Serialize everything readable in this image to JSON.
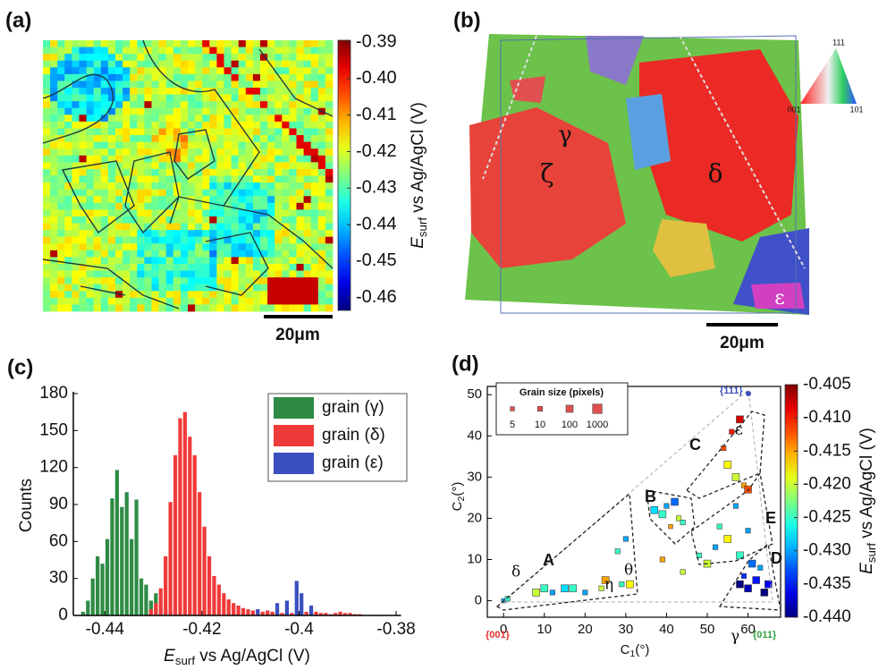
{
  "chart_data": [
    {
      "type": "heatmap",
      "panel_label": "(a)",
      "colorbar": {
        "label": {
          "main": "E",
          "sub": "surf",
          "rest": " vs Ag/AgCl (V)"
        },
        "clim": [
          -0.4635,
          -0.3895
        ],
        "cticks": [
          -0.39,
          {
            "value": -0.4,
            "label": "-0.40"
          },
          -0.41,
          -0.42,
          -0.43,
          -0.44,
          -0.45,
          -0.46
        ]
      },
      "scale_bar": "20μm"
    },
    {
      "type": "image",
      "panel_label": "(b)",
      "annotations": [
        "γ",
        "ζ",
        "δ",
        "ε"
      ],
      "key_labels": [
        "111",
        "001",
        "101"
      ],
      "scale_bar": "20μm"
    },
    {
      "type": "histogram",
      "panel_label": "(c)",
      "ylabel": "Counts",
      "xlabel": {
        "main": "E",
        "sub": "surf",
        "rest": " vs Ag/AgCl (V)"
      },
      "xlim": [
        -0.4465,
        -0.379
      ],
      "xticks": [
        -0.44,
        -0.42,
        -0.4,
        -0.38
      ],
      "ylim": [
        0,
        180
      ],
      "yticks": [
        0,
        30,
        60,
        90,
        120,
        150,
        180
      ],
      "bins": [
        -0.446,
        -0.445,
        -0.444,
        -0.443,
        -0.442,
        -0.441,
        -0.44,
        -0.439,
        -0.438,
        -0.437,
        -0.436,
        -0.435,
        -0.434,
        -0.433,
        -0.432,
        -0.431,
        -0.43,
        -0.429,
        -0.428,
        -0.427,
        -0.426,
        -0.425,
        -0.424,
        -0.423,
        -0.422,
        -0.421,
        -0.42,
        -0.419,
        -0.418,
        -0.417,
        -0.416,
        -0.415,
        -0.414,
        -0.413,
        -0.412,
        -0.411,
        -0.41,
        -0.409,
        -0.408,
        -0.407,
        -0.406,
        -0.405,
        -0.404,
        -0.403,
        -0.402,
        -0.401,
        -0.4,
        -0.399,
        -0.398,
        -0.397,
        -0.396,
        -0.395,
        -0.394,
        -0.393,
        -0.392,
        -0.391,
        -0.39,
        -0.389,
        -0.388,
        -0.387,
        -0.386
      ],
      "series": [
        {
          "name": "grain (γ)",
          "color": "#2e8b45",
          "values": [
            0,
            3,
            12,
            30,
            48,
            42,
            62,
            95,
            118,
            88,
            100,
            62,
            94,
            30,
            25,
            12,
            18,
            8,
            5,
            3,
            0,
            0,
            0,
            0,
            0,
            0,
            0,
            0,
            0,
            0,
            0,
            0,
            0,
            0,
            0,
            0,
            0,
            0,
            0,
            0,
            0,
            0,
            0,
            0,
            0,
            0,
            0,
            0,
            0,
            0,
            0,
            0,
            0,
            0,
            0,
            0,
            0,
            0,
            0,
            0
          ]
        },
        {
          "name": "grain (δ)",
          "color": "#f03a3a",
          "values": [
            0,
            0,
            0,
            0,
            0,
            0,
            0,
            0,
            0,
            0,
            0,
            0,
            0,
            0,
            0,
            5,
            10,
            22,
            48,
            92,
            130,
            160,
            165,
            145,
            130,
            100,
            72,
            48,
            32,
            25,
            18,
            13,
            10,
            8,
            6,
            5,
            4,
            5,
            3,
            4,
            3,
            3,
            2,
            3,
            2,
            2,
            2,
            3,
            2,
            3,
            2,
            2,
            1,
            2,
            3,
            2,
            2,
            1,
            1,
            0
          ]
        },
        {
          "name": "grain (ε)",
          "color": "#3a4fc0",
          "values": [
            0,
            0,
            0,
            0,
            0,
            0,
            0,
            0,
            0,
            0,
            0,
            0,
            0,
            0,
            0,
            0,
            0,
            0,
            0,
            0,
            0,
            0,
            0,
            0,
            0,
            0,
            0,
            0,
            0,
            0,
            0,
            0,
            0,
            0,
            0,
            0,
            0,
            5,
            0,
            0,
            0,
            10,
            0,
            12,
            0,
            28,
            18,
            0,
            8,
            0,
            0,
            0,
            0,
            0,
            0,
            0,
            0,
            0,
            0,
            0
          ]
        }
      ]
    },
    {
      "type": "scatter",
      "panel_label": "(d)",
      "xlabel": {
        "main": "C",
        "sub": "1",
        "rest": "(°)"
      },
      "ylabel": {
        "main": "C",
        "sub": "2",
        "rest": "(°)"
      },
      "xlim": [
        -4,
        68
      ],
      "xticks": [
        0,
        10,
        20,
        30,
        40,
        50,
        60
      ],
      "ylim": [
        -4,
        52
      ],
      "yticks": [
        0,
        10,
        20,
        30,
        40,
        50
      ],
      "x": [
        0,
        1,
        8,
        10,
        12,
        15,
        17,
        20,
        24,
        25,
        28,
        30,
        31,
        29,
        37,
        39,
        40,
        42,
        43,
        44,
        41,
        55,
        57,
        59,
        60,
        56,
        58,
        54,
        57,
        48,
        50,
        52,
        55,
        58,
        60,
        53,
        44,
        39,
        58,
        60,
        62,
        64,
        63,
        61,
        65,
        59
      ],
      "y": [
        0,
        0.5,
        2,
        3,
        2,
        3,
        3,
        2,
        3,
        5,
        12,
        15,
        4,
        4,
        22,
        21,
        23,
        24,
        20,
        19,
        18,
        33,
        30,
        28,
        27,
        41,
        44,
        37,
        23,
        11,
        9,
        13,
        15,
        11,
        17,
        18,
        7,
        10,
        4,
        3,
        5,
        2,
        8,
        9,
        4,
        6
      ],
      "sizes": [
        5,
        10,
        100,
        100,
        10,
        100,
        100,
        10,
        10,
        100,
        10,
        10,
        100,
        10,
        100,
        100,
        10,
        100,
        10,
        10,
        5,
        100,
        100,
        10,
        100,
        10,
        100,
        10,
        10,
        10,
        100,
        10,
        100,
        100,
        10,
        10,
        10,
        10,
        100,
        100,
        100,
        100,
        10,
        100,
        100,
        10
      ],
      "values": [
        -0.43,
        -0.425,
        -0.42,
        -0.425,
        -0.43,
        -0.428,
        -0.425,
        -0.43,
        -0.42,
        -0.415,
        -0.425,
        -0.43,
        -0.418,
        -0.425,
        -0.428,
        -0.425,
        -0.43,
        -0.432,
        -0.42,
        -0.425,
        -0.415,
        -0.418,
        -0.42,
        -0.415,
        -0.412,
        -0.41,
        -0.408,
        -0.412,
        -0.43,
        -0.425,
        -0.42,
        -0.43,
        -0.418,
        -0.425,
        -0.43,
        -0.425,
        -0.42,
        -0.415,
        -0.44,
        -0.438,
        -0.435,
        -0.44,
        -0.43,
        -0.432,
        -0.436,
        -0.434
      ],
      "size_legend": {
        "title": "Grain size (pixels)",
        "sizes": [
          5,
          10,
          100,
          1000
        ]
      },
      "annotations": [
        "A",
        "B",
        "C",
        "D",
        "E",
        "δ",
        "η",
        "θ",
        "γ",
        "ε",
        "{111}",
        "{001}",
        "{011}"
      ],
      "colorbar": {
        "label": {
          "main": "E",
          "sub": "surf",
          "rest": " vs Ag/AgCl (V)"
        },
        "clim": [
          -0.44,
          -0.405
        ],
        "cticks": [
          -0.405,
          {
            "value": -0.41,
            "label": "-0.410"
          },
          -0.415,
          {
            "value": -0.42,
            "label": "-0.420"
          },
          -0.425,
          {
            "value": -0.43,
            "label": "-0.430"
          },
          -0.435,
          {
            "value": -0.44,
            "label": "-0.440"
          }
        ]
      }
    }
  ]
}
